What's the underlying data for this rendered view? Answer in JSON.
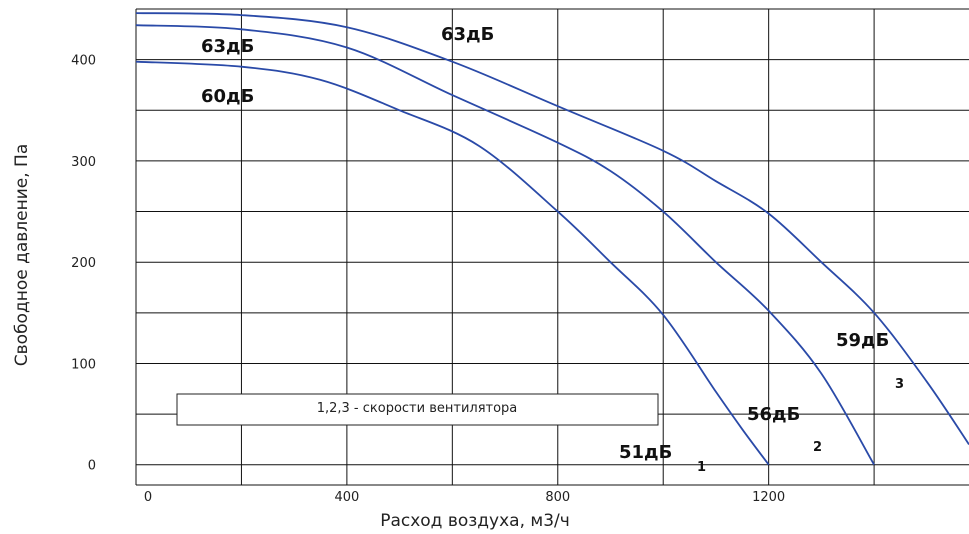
{
  "chart_data": {
    "type": "line",
    "xlabel": "Расход воздуха, м3/ч",
    "ylabel": "Свободное давление, Па",
    "xlim": [
      0,
      1580
    ],
    "ylim": [
      -20,
      450
    ],
    "x_tick_labels": [
      "0",
      "400",
      "800",
      "1200"
    ],
    "y_tick_labels": [
      "0",
      "100",
      "200",
      "300",
      "400"
    ],
    "grid": true,
    "line_color": "#2a4aa8",
    "legend_box_text": "1,2,3 - скорости вентилятора",
    "series": [
      {
        "name": "1",
        "x": [
          0,
          200,
          350,
          500,
          650,
          800,
          900,
          1000,
          1100,
          1150,
          1200
        ],
        "y": [
          398,
          393,
          380,
          350,
          315,
          250,
          200,
          148,
          72,
          35,
          0
        ]
      },
      {
        "name": "2",
        "x": [
          0,
          200,
          400,
          600,
          800,
          900,
          1000,
          1100,
          1200,
          1300,
          1400
        ],
        "y": [
          434,
          430,
          412,
          365,
          318,
          290,
          250,
          200,
          152,
          90,
          0
        ]
      },
      {
        "name": "3",
        "x": [
          0,
          200,
          400,
          600,
          800,
          1000,
          1100,
          1200,
          1300,
          1400,
          1500,
          1580
        ],
        "y": [
          446,
          444,
          432,
          398,
          354,
          310,
          280,
          248,
          200,
          150,
          82,
          20
        ]
      }
    ],
    "annotations": {
      "sound_levels": [
        "63дБ",
        "63дБ",
        "60дБ",
        "51дБ",
        "56дБ",
        "59дБ"
      ],
      "speed_numbers": [
        "1",
        "2",
        "3"
      ]
    }
  }
}
